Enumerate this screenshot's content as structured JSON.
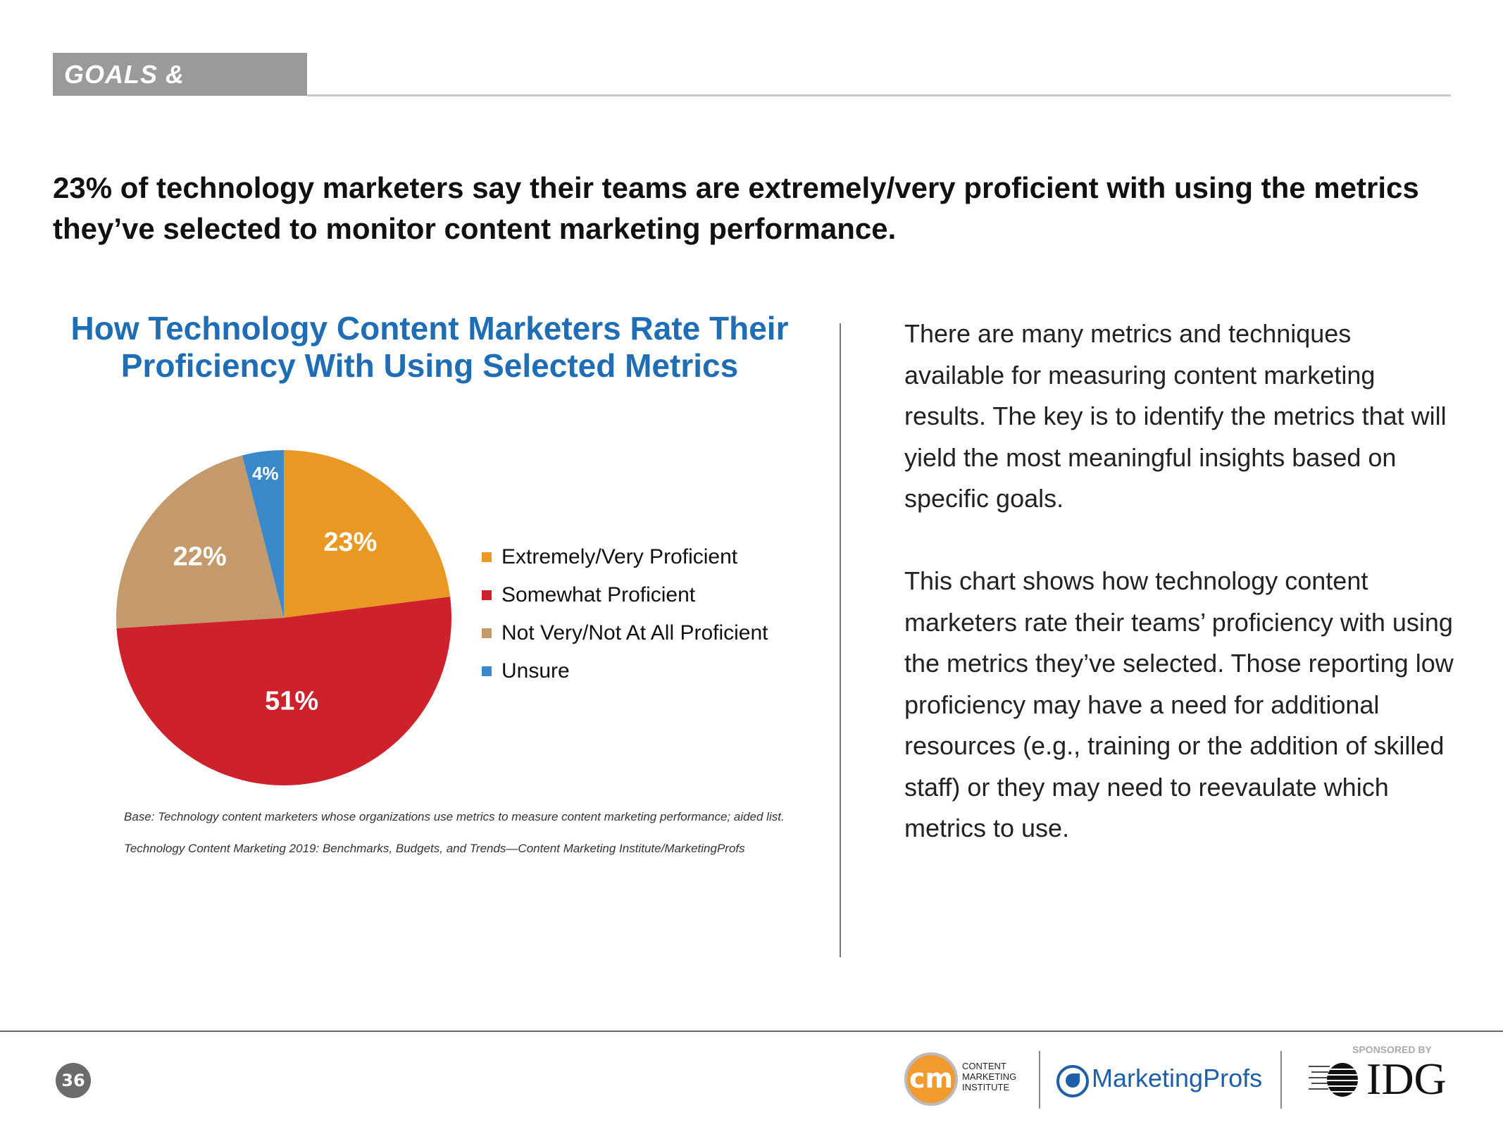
{
  "section_tag": "GOALS & METRICS",
  "headline": "23% of technology marketers say their teams are extremely/very proficient with using the metrics they’ve selected to monitor content marketing performance.",
  "chart_data": {
    "type": "pie",
    "title": "How Technology Content Marketers Rate Their Proficiency With Using Selected Metrics",
    "categories": [
      "Extremely/Very Proficient",
      "Somewhat Proficient",
      "Not Very/Not At All Proficient",
      "Unsure"
    ],
    "values": [
      23,
      51,
      22,
      4
    ],
    "labels": [
      "23%",
      "51%",
      "22%",
      "4%"
    ],
    "colors": [
      "#e99923",
      "#cd222c",
      "#c49a6c",
      "#3a8acb"
    ],
    "legend_position": "right"
  },
  "footnotes": {
    "base": "Base: Technology content marketers whose organizations use metrics to measure content marketing performance; aided list.",
    "source": "Technology Content Marketing 2019: Benchmarks, Budgets, and Trends—Content Marketing Institute/MarketingProfs"
  },
  "body": {
    "p1": "There are many metrics and techniques available for measuring content marketing results. The key is to identify the metrics that will yield the most meaningful insights based on specific goals.",
    "p2": "This chart shows how technology content marketers rate their teams’ proficiency with using the metrics they’ve selected. Those reporting low proficiency may have a need for additional resources (e.g., training or the addition of skilled staff) or they may need to reevaulate which metrics to use."
  },
  "footer": {
    "page_number": "36",
    "cmi_logo": "CONTENT MARKETING INSTITUTE",
    "cmi_mark": "cm",
    "mprofs_logo": "MarketingProfs",
    "sponsored_by": "SPONSORED BY",
    "idg_logo": "IDG"
  }
}
